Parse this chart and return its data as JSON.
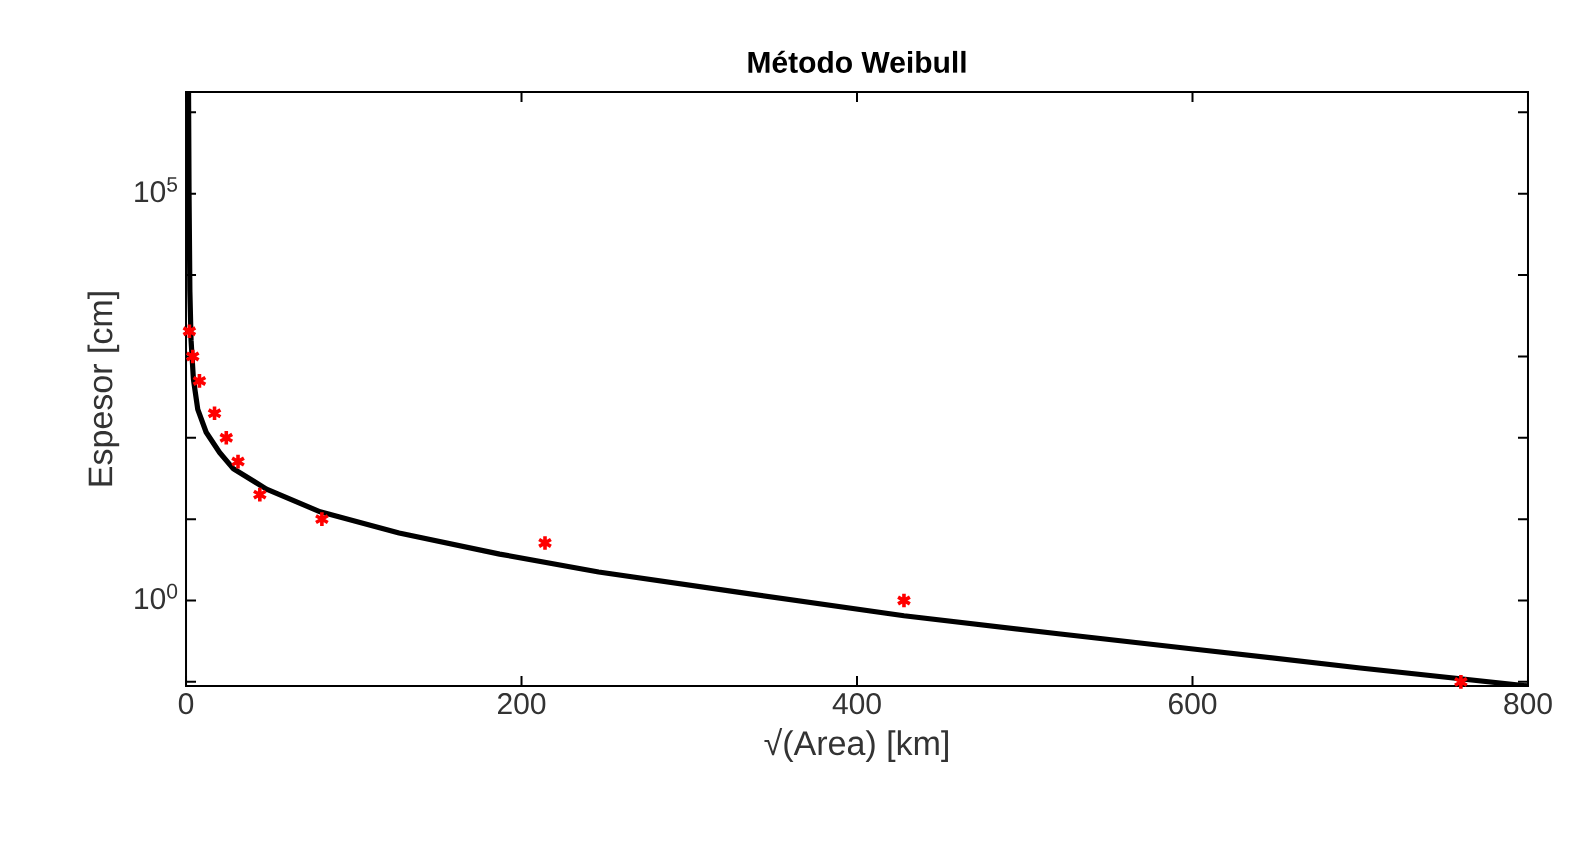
{
  "chart_data": {
    "type": "scatter",
    "title": "**Método Weibull**",
    "xlabel": "√(Area) [km]",
    "ylabel": "Espesor [cm]",
    "log": "y",
    "xlim": [
      0,
      800
    ],
    "ylim": [
      0.089,
      1780000
    ],
    "xticks": [
      0,
      200,
      400,
      600,
      800
    ],
    "yticks": [
      {
        "value": 0.1,
        "label": null
      },
      {
        "value": 1,
        "label": "10$^{0}$"
      },
      {
        "value": 10,
        "label": null
      },
      {
        "value": 100,
        "label": null
      },
      {
        "value": 1000,
        "label": null
      },
      {
        "value": 10000,
        "label": null
      },
      {
        "value": 100000,
        "label": "10$^{5}$"
      },
      {
        "value": 1000000,
        "label": null
      }
    ],
    "series": [
      {
        "marker": "cross",
        "color": "#ff0000",
        "x": [
          2,
          4,
          8,
          17,
          24,
          31,
          44,
          81,
          214,
          428,
          760
        ],
        "values": [
          2040,
          1000,
          500,
          200,
          100,
          51,
          20,
          10,
          5.1,
          1,
          0.1
        ]
      },
      {
        "type": "line",
        "marker": "none",
        "line_style": "solid",
        "color": "#000000",
        "x": [
          1.5,
          1.8,
          2.3,
          3,
          4.4,
          7,
          12,
          20,
          28,
          48,
          80,
          127,
          187,
          246,
          330,
          428,
          520,
          603,
          700,
          800
        ],
        "values": [
          1780000,
          100000,
          6310,
          1585,
          525,
          224,
          117,
          66,
          42,
          23.4,
          12.3,
          6.76,
          3.72,
          2.24,
          1.26,
          0.65,
          0.39,
          0.25,
          0.148,
          0.089
        ]
      }
    ]
  }
}
